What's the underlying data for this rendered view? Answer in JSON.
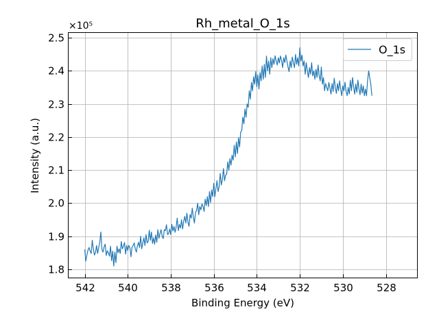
{
  "chart_data": {
    "type": "line",
    "title": "Rh_metal_O_1s",
    "xlabel": "Binding Energy (eV)",
    "ylabel": "Intensity (a.u.)",
    "y_multiplier_label": "×10⁵",
    "x_reversed": true,
    "xlim": [
      542.75,
      526.55
    ],
    "ylim": [
      1.775,
      2.515
    ],
    "xticks": [
      542,
      540,
      538,
      536,
      534,
      532,
      530,
      528
    ],
    "yticks": [
      1.8,
      1.9,
      2.0,
      2.1,
      2.2,
      2.3,
      2.4,
      2.5
    ],
    "ytick_labels": [
      "1.8",
      "1.9",
      "2.0",
      "2.1",
      "2.2",
      "2.3",
      "2.4",
      "2.5"
    ],
    "grid": true,
    "legend_position": "upper right",
    "series": [
      {
        "name": "O_1s",
        "color": "#1f77b4",
        "x_start": 542.0,
        "x_step": -0.05,
        "values": [
          1.86,
          1.825,
          1.843,
          1.858,
          1.866,
          1.855,
          1.848,
          1.888,
          1.862,
          1.843,
          1.851,
          1.872,
          1.848,
          1.866,
          1.882,
          1.913,
          1.86,
          1.852,
          1.868,
          1.876,
          1.842,
          1.856,
          1.85,
          1.84,
          1.87,
          1.826,
          1.855,
          1.81,
          1.852,
          1.82,
          1.87,
          1.85,
          1.862,
          1.848,
          1.884,
          1.862,
          1.87,
          1.881,
          1.846,
          1.872,
          1.857,
          1.872,
          1.866,
          1.838,
          1.867,
          1.872,
          1.88,
          1.862,
          1.852,
          1.871,
          1.882,
          1.866,
          1.9,
          1.862,
          1.88,
          1.895,
          1.872,
          1.905,
          1.88,
          1.884,
          1.918,
          1.888,
          1.913,
          1.878,
          1.895,
          1.876,
          1.904,
          1.882,
          1.92,
          1.894,
          1.908,
          1.92,
          1.9,
          1.893,
          1.92,
          1.917,
          1.935,
          1.905,
          1.908,
          1.922,
          1.905,
          1.936,
          1.916,
          1.93,
          1.912,
          1.928,
          1.955,
          1.917,
          1.936,
          1.925,
          1.95,
          1.922,
          1.945,
          1.96,
          1.94,
          1.97,
          1.942,
          1.93,
          1.966,
          1.955,
          1.985,
          1.958,
          1.94,
          1.972,
          1.978,
          2.0,
          1.965,
          1.99,
          1.98,
          1.998,
          1.99,
          1.975,
          2.012,
          1.993,
          2.02,
          1.99,
          2.035,
          2.002,
          2.04,
          2.02,
          2.06,
          2.02,
          2.045,
          2.068,
          2.035,
          2.05,
          2.09,
          2.055,
          2.072,
          2.105,
          2.068,
          2.085,
          2.088,
          2.125,
          2.1,
          2.135,
          2.115,
          2.145,
          2.13,
          2.175,
          2.14,
          2.185,
          2.15,
          2.198,
          2.17,
          2.215,
          2.22,
          2.26,
          2.24,
          2.285,
          2.26,
          2.3,
          2.29,
          2.34,
          2.315,
          2.365,
          2.34,
          2.382,
          2.36,
          2.398,
          2.352,
          2.388,
          2.345,
          2.395,
          2.37,
          2.415,
          2.375,
          2.42,
          2.38,
          2.445,
          2.4,
          2.43,
          2.39,
          2.44,
          2.41,
          2.437,
          2.42,
          2.446,
          2.43,
          2.418,
          2.44,
          2.424,
          2.445,
          2.432,
          2.41,
          2.44,
          2.425,
          2.448,
          2.43,
          2.412,
          2.398,
          2.43,
          2.41,
          2.442,
          2.425,
          2.41,
          2.45,
          2.42,
          2.44,
          2.415,
          2.47,
          2.43,
          2.448,
          2.415,
          2.43,
          2.39,
          2.425,
          2.4,
          2.38,
          2.41,
          2.39,
          2.425,
          2.385,
          2.4,
          2.375,
          2.405,
          2.38,
          2.418,
          2.385,
          2.37,
          2.412,
          2.36,
          2.38,
          2.34,
          2.362,
          2.35,
          2.34,
          2.365,
          2.348,
          2.33,
          2.362,
          2.338,
          2.378,
          2.35,
          2.332,
          2.362,
          2.34,
          2.37,
          2.345,
          2.325,
          2.355,
          2.34,
          2.366,
          2.338,
          2.325,
          2.35,
          2.33,
          2.372,
          2.34,
          2.38,
          2.352,
          2.33,
          2.36,
          2.335,
          2.372,
          2.345,
          2.328,
          2.36,
          2.333,
          2.355,
          2.325,
          2.345,
          2.325,
          2.37,
          2.4,
          2.38,
          2.36,
          2.325
        ]
      }
    ]
  }
}
